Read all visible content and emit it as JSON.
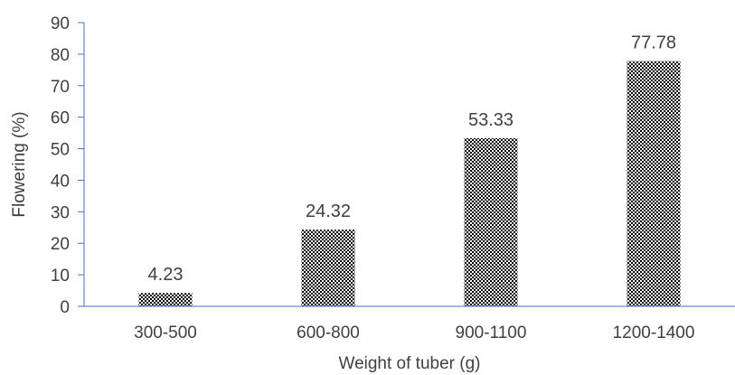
{
  "chart_data": {
    "type": "bar",
    "title": "",
    "xlabel": "Weight of tuber (g)",
    "ylabel": "Flowering (%)",
    "categories": [
      "300-500",
      "600-800",
      "900-1100",
      "1200-1400"
    ],
    "values": [
      4.23,
      24.32,
      53.33,
      77.78
    ],
    "data_labels": [
      "4.23",
      "24.32",
      "53.33",
      "77.78"
    ],
    "ylim": [
      0,
      90
    ],
    "yticks": [
      0,
      10,
      20,
      30,
      40,
      50,
      60,
      70,
      80,
      90
    ],
    "grid": false,
    "legend": "none",
    "bar_fill": "checkerboard-pattern",
    "axis_color": "#4472c4",
    "bar_colors": [
      "#000000",
      "#ffffff"
    ],
    "text_color": "#404040"
  }
}
